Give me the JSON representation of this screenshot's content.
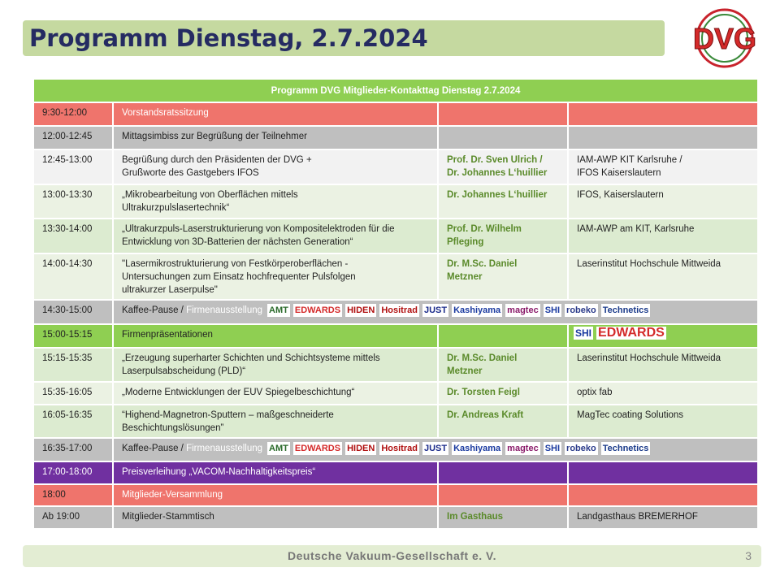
{
  "title": "Programm Dienstag, 2.7.2024",
  "logo_text": "DVG",
  "table": {
    "header": "Programm DVG Mitglieder-Kontakttag Dienstag 2.7.2024",
    "rows": [
      {
        "time": "9:30-12:00",
        "topic": "Vorstandsratssitzung",
        "speaker": "",
        "org": ""
      },
      {
        "time": "12:00-12:45",
        "topic": "Mittagsimbiss zur Begrüßung der Teilnehmer",
        "speaker": "",
        "org": ""
      },
      {
        "time": "12:45-13:00",
        "topic": "Begrüßung durch den Präsidenten der DVG +\nGrußworte des Gastgebers IFOS",
        "speaker": "Prof. Dr. Sven Ulrich /\nDr. Johannes L‘huillier",
        "org": "IAM-AWP KIT Karlsruhe /\nIFOS Kaiserslautern"
      },
      {
        "time": "13:00-13:30",
        "topic": "„Mikrobearbeitung von Oberflächen mittels\nUltrakurzpulslasertechnik“",
        "speaker": "Dr. Johannes L‘huillier",
        "org": "IFOS, Kaiserslautern"
      },
      {
        "time": "13:30-14:00",
        "topic": "„Ultrakurzpuls-Laserstrukturierung von Kompositelektroden für die\nEntwicklung von 3D-Batterien der nächsten Generation“",
        "speaker": "Prof. Dr. Wilhelm\nPfleging",
        "org": "IAM-AWP am KIT, Karlsruhe"
      },
      {
        "time": "14:00-14:30",
        "topic": "\"Lasermikrostrukturierung von Festkörperoberflächen -\nUntersuchungen zum Einsatz hochfrequenter Pulsfolgen\nultrakurzer Laserpulse\"",
        "speaker": "Dr. M.Sc. Daniel\nMetzner",
        "org": "Laserinstitut Hochschule Mittweida"
      },
      {
        "time": "14:30-15:00",
        "topic": "Kaffee-Pause / ",
        "topic_extra": "Firmenausstellung",
        "speaker": "",
        "org": ""
      },
      {
        "time": "15:00-15:15",
        "topic": "Firmenpräsentationen",
        "speaker": "",
        "org": ""
      },
      {
        "time": "15:15-15:35",
        "topic": "„Erzeugung superharter Schichten und Schichtsysteme mittels\nLaserpulsabscheidung (PLD)“",
        "speaker": "Dr. M.Sc. Daniel\nMetzner",
        "org": "Laserinstitut Hochschule Mittweida"
      },
      {
        "time": "15:35-16:05",
        "topic": "„Moderne Entwicklungen der EUV Spiegelbeschichtung“",
        "speaker": "Dr. Torsten Feigl",
        "org": "optix fab"
      },
      {
        "time": "16:05-16:35",
        "topic": "“Highend-Magnetron-Sputtern – maßgeschneiderte\nBeschichtungslösungen”",
        "speaker": "Dr. Andreas Kraft",
        "org": "MagTec coating Solutions"
      },
      {
        "time": "16:35-17:00",
        "topic": "Kaffee-Pause / ",
        "topic_extra": "Firmenausstellung",
        "speaker": "",
        "org": ""
      },
      {
        "time": "17:00-18:00",
        "topic": "Preisverleihung „VACOM-Nachhaltigkeitspreis“",
        "speaker": "",
        "org": ""
      },
      {
        "time": "18:00",
        "topic": "Mitglieder-Versammlung",
        "speaker": "",
        "org": ""
      },
      {
        "time": "Ab 19:00",
        "topic": "Mitglieder-Stammtisch",
        "speaker": "Im Gasthaus",
        "org": "Landgasthaus BREMERHOF"
      }
    ]
  },
  "sponsor_logos": [
    "AMT",
    "EDWARDS",
    "HIDEN",
    "Hositrad",
    "JUST",
    "Kashiyama",
    "magtec",
    "SHI",
    "robeko",
    "Technetics"
  ],
  "presenter_logos": [
    "SHI",
    "EDWARDS"
  ],
  "footer": {
    "text": "Deutsche Vakuum-Gesellschaft e. V.",
    "page": "3"
  },
  "colors": {
    "title_bar": "#c5d9a0",
    "header": "#8fcf52",
    "red": "#ef746c",
    "gray": "#bfbfbf",
    "purple": "#7030a0",
    "title_text": "#252b62"
  }
}
